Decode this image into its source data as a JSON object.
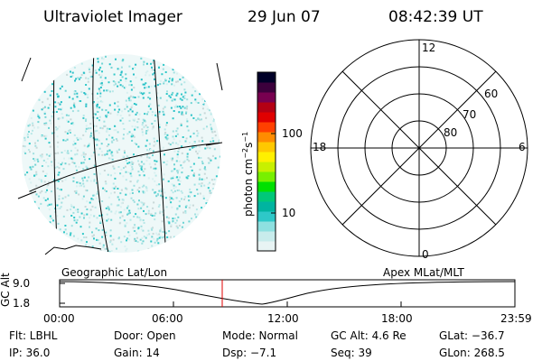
{
  "header": {
    "title": "Ultraviolet Imager",
    "date": "29 Jun 07",
    "time": "08:42:39 UT"
  },
  "colorbar": {
    "label": "photon cm",
    "label_sup1": "−2",
    "label_mid": "s",
    "label_sup2": "−1",
    "tick_100": "100",
    "tick_10": "10",
    "colors": [
      "#e8f4f4",
      "#c8ecec",
      "#8ee0e0",
      "#2ec8c8",
      "#00b4a0",
      "#00c878",
      "#00e000",
      "#78f000",
      "#c8f000",
      "#fff000",
      "#ffc800",
      "#ff8c00",
      "#ff4000",
      "#e00000",
      "#b40014",
      "#780050",
      "#3c003c",
      "#000028"
    ]
  },
  "polar": {
    "label_12": "12",
    "label_18": "18",
    "label_6": "6",
    "label_0": "0",
    "label_60": "60",
    "label_70": "70",
    "label_80": "80"
  },
  "timeline": {
    "left_title": "Geographic Lat/Lon",
    "right_title": "Apex MLat/MLT",
    "ylabel": "GC Alt",
    "y_top": "9.0",
    "y_bottom": "1.8",
    "x_ticks": [
      "00:00",
      "06:00",
      "12:00",
      "18:00",
      "23:59"
    ],
    "marker_color": "#e00000"
  },
  "info": {
    "flt": "Flt: LBHL",
    "door": "Door: Open",
    "mode": "Mode: Normal",
    "gcalt": "GC Alt: 4.6 Re",
    "glat": "GLat: −36.7",
    "ip": "IP: 36.0",
    "gain": "Gain: 14",
    "dsp": "Dsp:   −7.1",
    "seq": "Seq: 39",
    "glon": "GLon: 268.5"
  }
}
